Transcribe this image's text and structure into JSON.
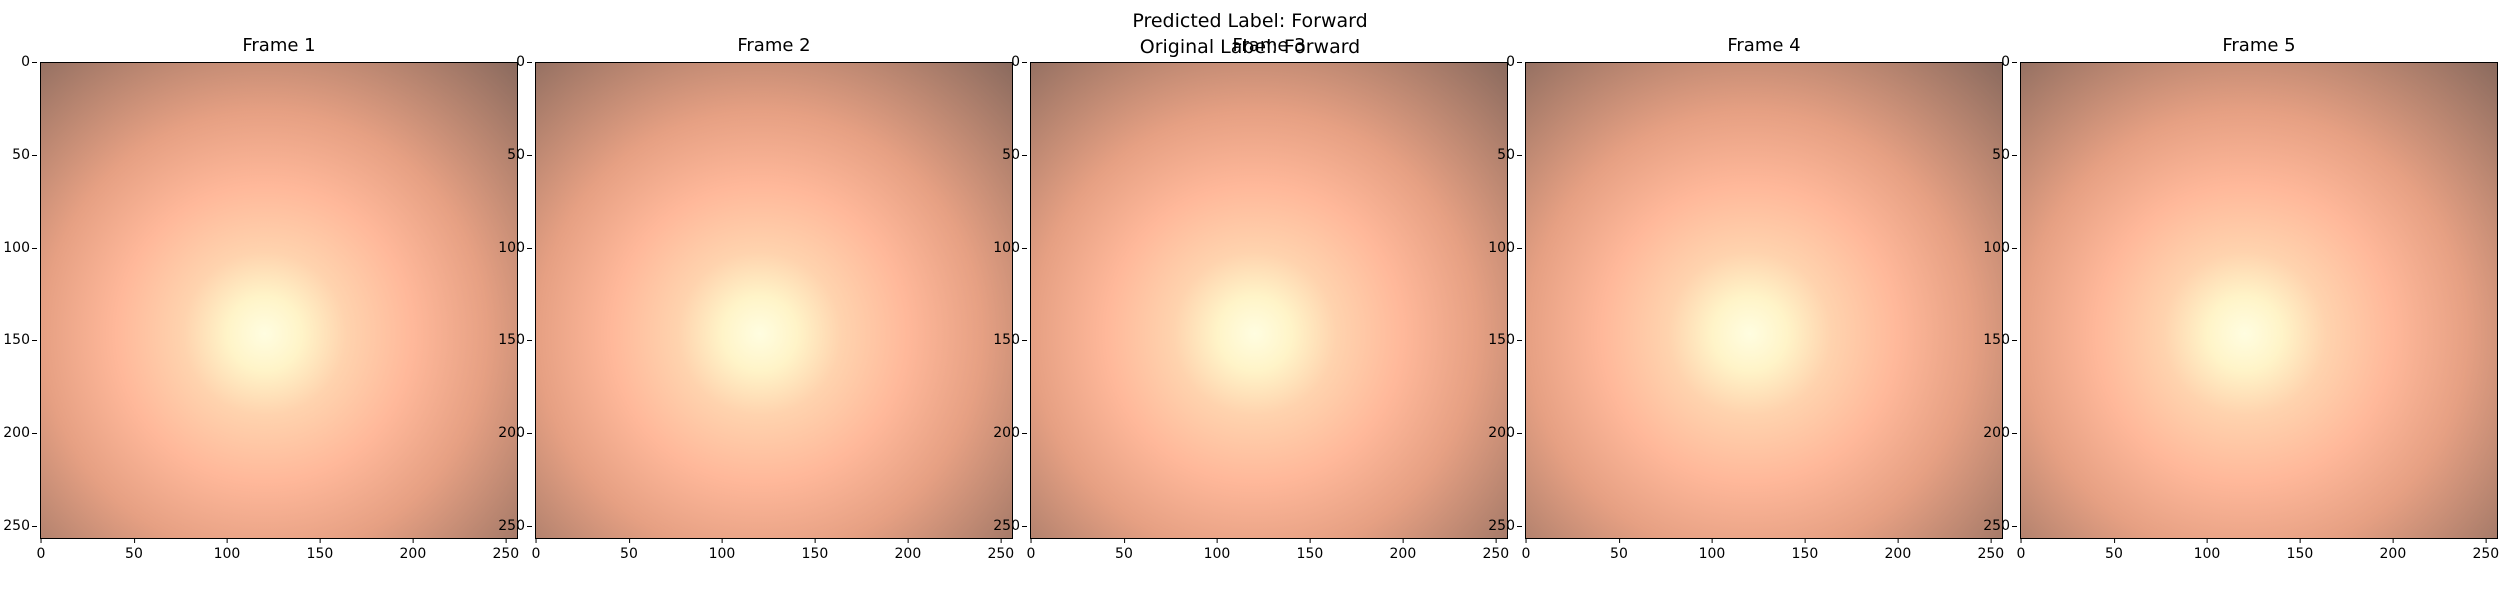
{
  "suptitle": {
    "predicted": "Predicted Label: Forward",
    "original": "Original Label: Forward"
  },
  "frames": [
    {
      "title": "Frame 1"
    },
    {
      "title": "Frame 2"
    },
    {
      "title": "Frame 3"
    },
    {
      "title": "Frame 4"
    },
    {
      "title": "Frame 5"
    }
  ],
  "axes": {
    "x_ticks": [
      0,
      50,
      100,
      150,
      200,
      250
    ],
    "y_ticks": [
      0,
      50,
      100,
      150,
      200,
      250
    ],
    "extent": 256
  },
  "image_description_colors": {
    "center": "#fffde0",
    "mid": "#ffb89a",
    "edge": "#8a6a5e"
  }
}
